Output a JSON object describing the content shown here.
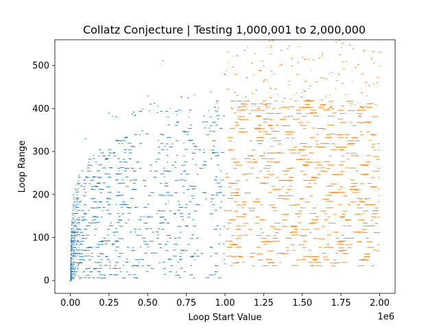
{
  "chart_data": {
    "type": "scatter",
    "title": "Collatz Conjecture | Testing 1,000,001 to 2,000,000",
    "xlabel": "Loop Start Value",
    "ylabel": "Loop Range",
    "x_offset_label": "1e6",
    "xlim": [
      -100000,
      2100000
    ],
    "ylim": [
      -30,
      560
    ],
    "x_ticks": [
      0.0,
      0.25,
      0.5,
      0.75,
      1.0,
      1.25,
      1.5,
      1.75,
      2.0
    ],
    "x_tick_labels": [
      "0.00",
      "0.25",
      "0.50",
      "0.75",
      "1.00",
      "1.25",
      "1.50",
      "1.75",
      "2.00"
    ],
    "y_ticks": [
      0,
      100,
      200,
      300,
      400,
      500
    ],
    "y_tick_labels": [
      "0",
      "100",
      "200",
      "300",
      "400",
      "500"
    ],
    "grid": false,
    "series": [
      {
        "color": "#1f77b4",
        "x_range": [
          1,
          1000000
        ],
        "y_range": [
          0,
          525
        ],
        "description_points": [
          {
            "x": 1,
            "y": 0
          },
          {
            "x": 20000,
            "y": 200
          },
          {
            "x": 100000,
            "y": 330
          },
          {
            "x": 250000,
            "y": 390
          },
          {
            "x": 500000,
            "y": 430
          },
          {
            "x": 600000,
            "y": 512
          },
          {
            "x": 1000000,
            "y": 480
          }
        ]
      },
      {
        "color": "#ff7f0e",
        "x_range": [
          1000001,
          2000000
        ],
        "y_range": [
          30,
          560
        ],
        "description_points": [
          {
            "x": 1000001,
            "y": 40
          },
          {
            "x": 1250000,
            "y": 500
          },
          {
            "x": 1500000,
            "y": 520
          },
          {
            "x": 1720000,
            "y": 556
          },
          {
            "x": 2000000,
            "y": 500
          }
        ]
      }
    ]
  }
}
